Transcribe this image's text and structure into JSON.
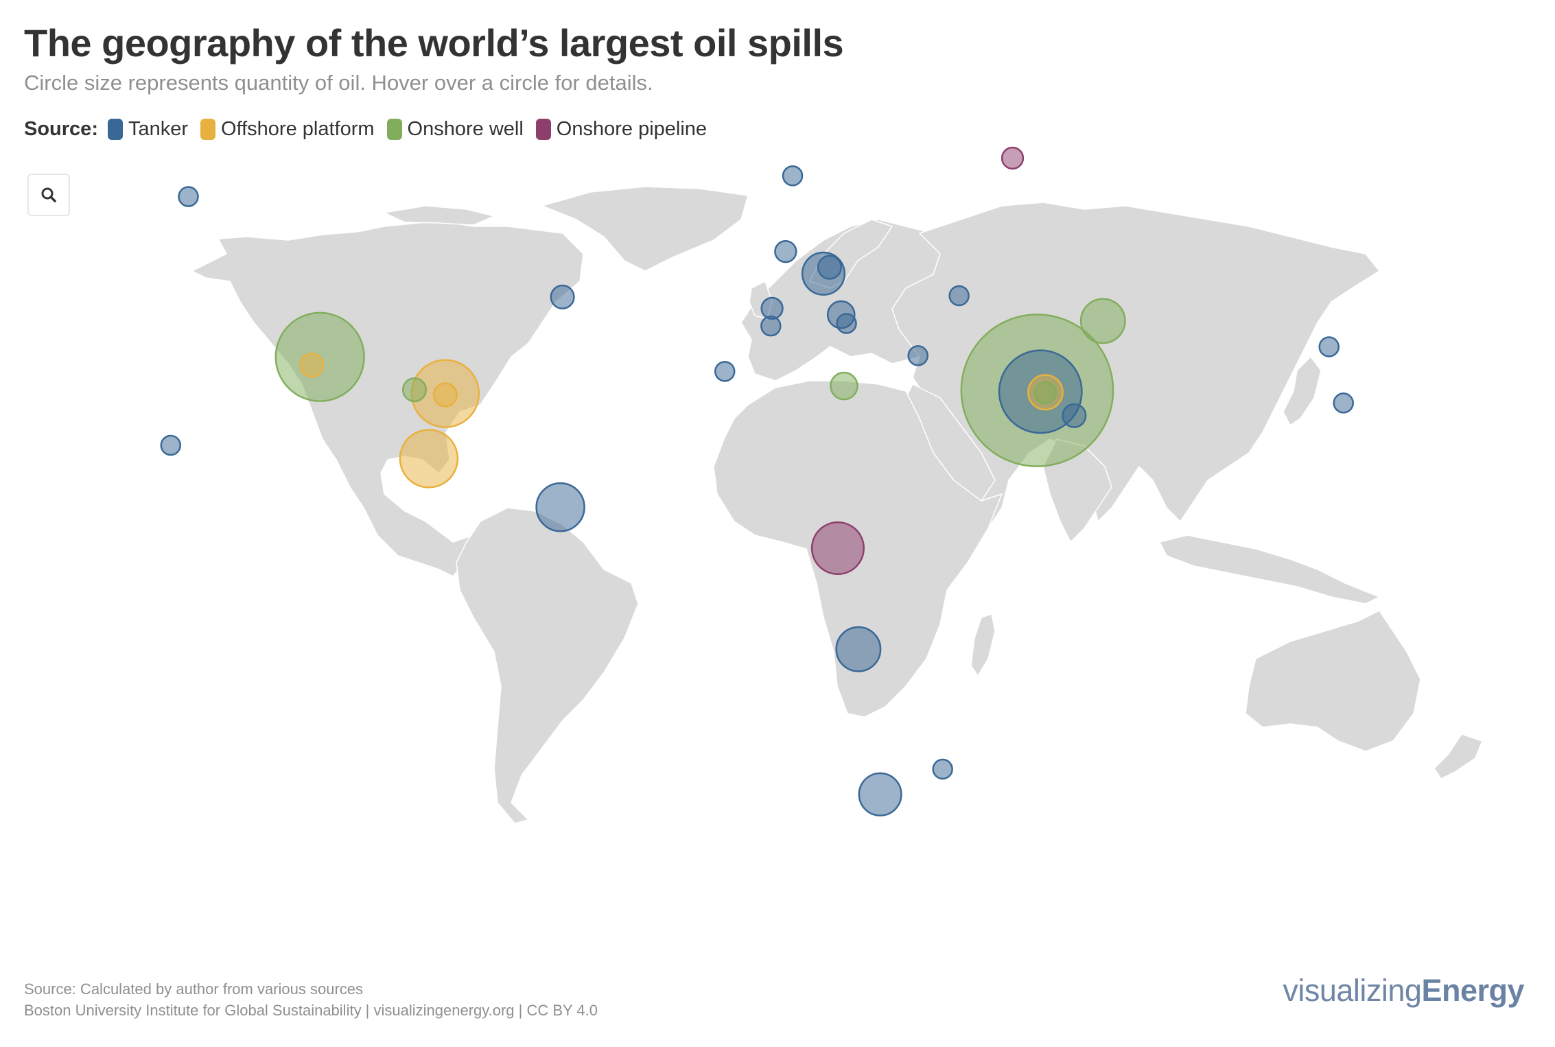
{
  "header": {
    "title": "The geography of the world’s largest oil spills",
    "subtitle": "Circle size represents quantity of oil. Hover over a circle for details."
  },
  "legend": {
    "title": "Source:",
    "items": [
      {
        "label": "Tanker",
        "color": "#3a6896"
      },
      {
        "label": "Offshore platform",
        "color": "#e8b13f"
      },
      {
        "label": "Onshore well",
        "color": "#82ae5c"
      },
      {
        "label": "Onshore pipeline",
        "color": "#8e3e6c"
      }
    ]
  },
  "controls": {
    "zoom_icon": "search-icon"
  },
  "map": {
    "land_color": "#d9d9d9",
    "border_color": "#ffffff",
    "projection": "equirectangular",
    "spills": [
      {
        "source": "Tanker",
        "lon": -151.5,
        "lat": 60.7,
        "size": 1
      },
      {
        "source": "Tanker",
        "lon": -155.8,
        "lat": 21.3,
        "size": 1
      },
      {
        "source": "Tanker",
        "lon": -60.5,
        "lat": 44.8,
        "size": 1.2
      },
      {
        "source": "Tanker",
        "lon": -61.0,
        "lat": 11.5,
        "size": 2.5
      },
      {
        "source": "Tanker",
        "lon": -21.0,
        "lat": 33.0,
        "size": 1
      },
      {
        "source": "Tanker",
        "lon": -4.5,
        "lat": 64.0,
        "size": 1
      },
      {
        "source": "Tanker",
        "lon": -6.2,
        "lat": 52.0,
        "size": 1.1
      },
      {
        "source": "Tanker",
        "lon": 3.0,
        "lat": 48.5,
        "size": 2.2
      },
      {
        "source": "Tanker",
        "lon": 4.5,
        "lat": 49.5,
        "size": 1.2
      },
      {
        "source": "Tanker",
        "lon": -9.5,
        "lat": 43.0,
        "size": 1.1
      },
      {
        "source": "Tanker",
        "lon": -9.8,
        "lat": 40.2,
        "size": 1
      },
      {
        "source": "Tanker",
        "lon": 7.3,
        "lat": 42.0,
        "size": 1.4
      },
      {
        "source": "Tanker",
        "lon": 8.6,
        "lat": 40.6,
        "size": 1
      },
      {
        "source": "Tanker",
        "lon": 26.0,
        "lat": 35.5,
        "size": 1
      },
      {
        "source": "Tanker",
        "lon": 36.0,
        "lat": 45.0,
        "size": 1
      },
      {
        "source": "Tanker",
        "lon": 64.0,
        "lat": 26.0,
        "size": 1.2
      },
      {
        "source": "Tanker",
        "lon": 55.8,
        "lat": 29.8,
        "size": 4.3
      },
      {
        "source": "Tanker",
        "lon": 11.5,
        "lat": -11.0,
        "size": 2.3
      },
      {
        "source": "Tanker",
        "lon": 16.8,
        "lat": -34.0,
        "size": 2.2
      },
      {
        "source": "Tanker",
        "lon": 32.0,
        "lat": -30.0,
        "size": 1
      },
      {
        "source": "Tanker",
        "lon": 126.0,
        "lat": 36.9,
        "size": 1
      },
      {
        "source": "Tanker",
        "lon": 129.5,
        "lat": 28.0,
        "size": 1
      },
      {
        "source": "Offshore platform",
        "lon": -121.5,
        "lat": 34.0,
        "size": 1.2
      },
      {
        "source": "Offshore platform",
        "lon": -89.0,
        "lat": 29.5,
        "size": 3.5
      },
      {
        "source": "Offshore platform",
        "lon": -89.0,
        "lat": 29.3,
        "size": 1.2
      },
      {
        "source": "Offshore platform",
        "lon": -93.0,
        "lat": 19.2,
        "size": 3.0
      },
      {
        "source": "Offshore platform",
        "lon": 57.0,
        "lat": 29.7,
        "size": 1.8
      },
      {
        "source": "Onshore well",
        "lon": -119.5,
        "lat": 35.3,
        "size": 4.6
      },
      {
        "source": "Onshore well",
        "lon": -96.5,
        "lat": 30.1,
        "size": 1.2
      },
      {
        "source": "Onshore well",
        "lon": 8.0,
        "lat": 30.7,
        "size": 1.4
      },
      {
        "source": "Onshore well",
        "lon": 71.0,
        "lat": 41.0,
        "size": 2.3
      },
      {
        "source": "Onshore well",
        "lon": 55.0,
        "lat": 30.0,
        "size": 7.9
      },
      {
        "source": "Onshore well",
        "lon": 57.0,
        "lat": 29.6,
        "size": 1.1
      },
      {
        "source": "Onshore pipeline",
        "lon": 49.0,
        "lat": 66.8,
        "size": 1.1
      },
      {
        "source": "Onshore pipeline",
        "lon": 6.5,
        "lat": 5.0,
        "size": 2.7
      }
    ]
  },
  "footer": {
    "source_line": "Source: Calculated by author from various sources",
    "credit_line": "Boston University Institute for Global Sustainability | visualizingenergy.org | CC BY 4.0"
  },
  "logo": {
    "light": "visualizing",
    "bold": "Energy"
  }
}
